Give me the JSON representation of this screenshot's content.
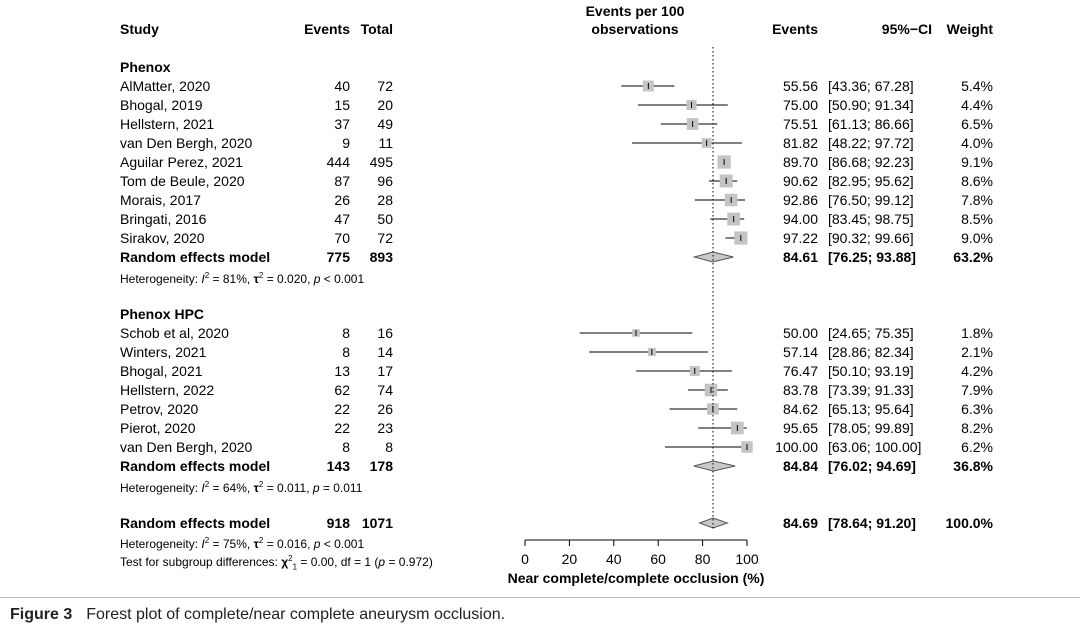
{
  "headers": {
    "study": "Study",
    "events": "Events",
    "total": "Total",
    "plot_line1": "Events per 100",
    "plot_line2": "observations",
    "events_right": "Events",
    "ci": "95%−CI",
    "weight": "Weight"
  },
  "chart_data": {
    "type": "forest",
    "xlabel": "Near complete/complete occlusion (%)",
    "xlim": [
      0,
      100
    ],
    "xticks": [
      "0",
      "20",
      "40",
      "60",
      "80",
      "100"
    ],
    "xtick_values": [
      0,
      20,
      40,
      60,
      80,
      100
    ],
    "reference_line": 84.69,
    "groups": [
      {
        "name": "Phenox",
        "studies": [
          {
            "study": "AlMatter, 2020",
            "events": "40",
            "total": "72",
            "est": 55.56,
            "lo": 43.36,
            "hi": 67.28,
            "est_text": "55.56",
            "ci_text": "[43.36; 67.28]",
            "weight": "5.4%",
            "w": 5.4
          },
          {
            "study": "Bhogal, 2019",
            "events": "15",
            "total": "20",
            "est": 75.0,
            "lo": 50.9,
            "hi": 91.34,
            "est_text": "75.00",
            "ci_text": "[50.90; 91.34]",
            "weight": "4.4%",
            "w": 4.4
          },
          {
            "study": "Hellstern, 2021",
            "events": "37",
            "total": "49",
            "est": 75.51,
            "lo": 61.13,
            "hi": 86.66,
            "est_text": "75.51",
            "ci_text": "[61.13; 86.66]",
            "weight": "6.5%",
            "w": 6.5
          },
          {
            "study": "van Den Bergh, 2020",
            "events": "9",
            "total": "11",
            "est": 81.82,
            "lo": 48.22,
            "hi": 97.72,
            "est_text": "81.82",
            "ci_text": "[48.22; 97.72]",
            "weight": "4.0%",
            "w": 4.0
          },
          {
            "study": "Aguilar Perez, 2021",
            "events": "444",
            "total": "495",
            "est": 89.7,
            "lo": 86.68,
            "hi": 92.23,
            "est_text": "89.70",
            "ci_text": "[86.68; 92.23]",
            "weight": "9.1%",
            "w": 9.1
          },
          {
            "study": "Tom de Beule, 2020",
            "events": "87",
            "total": "96",
            "est": 90.62,
            "lo": 82.95,
            "hi": 95.62,
            "est_text": "90.62",
            "ci_text": "[82.95; 95.62]",
            "weight": "8.6%",
            "w": 8.6
          },
          {
            "study": "Morais, 2017",
            "events": "26",
            "total": "28",
            "est": 92.86,
            "lo": 76.5,
            "hi": 99.12,
            "est_text": "92.86",
            "ci_text": "[76.50; 99.12]",
            "weight": "7.8%",
            "w": 7.8
          },
          {
            "study": "Bringati, 2016",
            "events": "47",
            "total": "50",
            "est": 94.0,
            "lo": 83.45,
            "hi": 98.75,
            "est_text": "94.00",
            "ci_text": "[83.45; 98.75]",
            "weight": "8.5%",
            "w": 8.5
          },
          {
            "study": "Sirakov, 2020",
            "events": "70",
            "total": "72",
            "est": 97.22,
            "lo": 90.32,
            "hi": 99.66,
            "est_text": "97.22",
            "ci_text": "[90.32; 99.66]",
            "weight": "9.0%",
            "w": 9.0
          }
        ],
        "summary": {
          "label": "Random effects model",
          "events": "775",
          "total": "893",
          "est": 84.61,
          "lo": 76.25,
          "hi": 93.88,
          "est_text": "84.61",
          "ci_text": "[76.25; 93.88]",
          "weight": "63.2%"
        },
        "het_i2": "81%",
        "het_tau2": "0.020",
        "het_p": "< 0.001"
      },
      {
        "name": "Phenox HPC",
        "studies": [
          {
            "study": "Schob et al, 2020",
            "events": "8",
            "total": "16",
            "est": 50.0,
            "lo": 24.65,
            "hi": 75.35,
            "est_text": "50.00",
            "ci_text": "[24.65; 75.35]",
            "weight": "1.8%",
            "w": 1.8
          },
          {
            "study": "Winters, 2021",
            "events": "8",
            "total": "14",
            "est": 57.14,
            "lo": 28.86,
            "hi": 82.34,
            "est_text": "57.14",
            "ci_text": "[28.86; 82.34]",
            "weight": "2.1%",
            "w": 2.1
          },
          {
            "study": "Bhogal, 2021",
            "events": "13",
            "total": "17",
            "est": 76.47,
            "lo": 50.1,
            "hi": 93.19,
            "est_text": "76.47",
            "ci_text": "[50.10; 93.19]",
            "weight": "4.2%",
            "w": 4.2
          },
          {
            "study": "Hellstern, 2022",
            "events": "62",
            "total": "74",
            "est": 83.78,
            "lo": 73.39,
            "hi": 91.33,
            "est_text": "83.78",
            "ci_text": "[73.39; 91.33]",
            "weight": "7.9%",
            "w": 7.9
          },
          {
            "study": "Petrov, 2020",
            "events": "22",
            "total": "26",
            "est": 84.62,
            "lo": 65.13,
            "hi": 95.64,
            "est_text": "84.62",
            "ci_text": "[65.13; 95.64]",
            "weight": "6.3%",
            "w": 6.3
          },
          {
            "study": "Pierot, 2020",
            "events": "22",
            "total": "23",
            "est": 95.65,
            "lo": 78.05,
            "hi": 99.89,
            "est_text": "95.65",
            "ci_text": "[78.05; 99.89]",
            "weight": "8.2%",
            "w": 8.2
          },
          {
            "study": "van Den Bergh, 2020",
            "events": "8",
            "total": "8",
            "est": 100.0,
            "lo": 63.06,
            "hi": 100.0,
            "est_text": "100.00",
            "ci_text": "[63.06; 100.00]",
            "weight": "6.2%",
            "w": 6.2
          }
        ],
        "summary": {
          "label": "Random effects model",
          "events": "143",
          "total": "178",
          "est": 84.84,
          "lo": 76.02,
          "hi": 94.69,
          "est_text": "84.84",
          "ci_text": "[76.02; 94.69]",
          "weight": "36.8%"
        },
        "het_i2": "64%",
        "het_tau2": "0.011",
        "het_p": "= 0.011"
      }
    ],
    "overall": {
      "label": "Random effects model",
      "events": "918",
      "total": "1071",
      "est": 84.69,
      "lo": 78.64,
      "hi": 91.2,
      "est_text": "84.69",
      "ci_text": "[78.64; 91.20]",
      "weight": "100.0%",
      "het_i2": "75%",
      "het_tau2": "0.016",
      "het_p": "< 0.001"
    },
    "subgroup_test": {
      "label": "Test for subgroup differences:",
      "chi2": "0.00",
      "df": "1",
      "p": "0.972"
    }
  },
  "colors": {
    "square": "#c4c4c4",
    "diamond": "#c8c8c8",
    "line": "#000000",
    "text": "#000000"
  },
  "caption": {
    "fig": "Figure 3",
    "text": "Forest plot of complete/near complete aneurysm occlusion."
  }
}
